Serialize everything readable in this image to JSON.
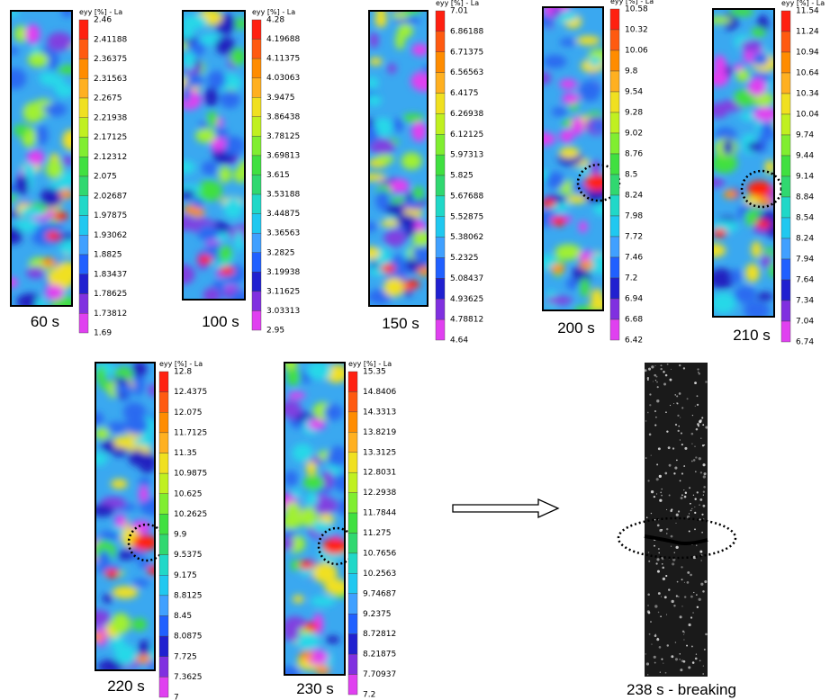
{
  "panels": [
    {
      "time": "60 s",
      "colorbar_title": "eyy [%] - La",
      "ticks": [
        "2.46",
        "2.41188",
        "2.36375",
        "2.31563",
        "2.2675",
        "2.21938",
        "2.17125",
        "2.12312",
        "2.075",
        "2.02687",
        "1.97875",
        "1.93062",
        "1.8825",
        "1.83437",
        "1.78625",
        "1.73812",
        "1.69"
      ]
    },
    {
      "time": "100 s",
      "colorbar_title": "eyy [%] - La",
      "ticks": [
        "4.28",
        "4.19688",
        "4.11375",
        "4.03063",
        "3.9475",
        "3.86438",
        "3.78125",
        "3.69813",
        "3.615",
        "3.53188",
        "3.44875",
        "3.36563",
        "3.2825",
        "3.19938",
        "3.11625",
        "3.03313",
        "2.95"
      ]
    },
    {
      "time": "150 s",
      "colorbar_title": "eyy [%] - La",
      "ticks": [
        "7.01",
        "6.86188",
        "6.71375",
        "6.56563",
        "6.4175",
        "6.26938",
        "6.12125",
        "5.97313",
        "5.825",
        "5.67688",
        "5.52875",
        "5.38062",
        "5.2325",
        "5.08437",
        "4.93625",
        "4.78812",
        "4.64"
      ]
    },
    {
      "time": "200 s",
      "colorbar_title": "eyy [%] - La",
      "ticks": [
        "10.58",
        "10.32",
        "10.06",
        "9.8",
        "9.54",
        "9.28",
        "9.02",
        "8.76",
        "8.5",
        "8.24",
        "7.98",
        "7.72",
        "7.46",
        "7.2",
        "6.94",
        "6.68",
        "6.42"
      ]
    },
    {
      "time": "210 s",
      "colorbar_title": "eyy [%] - La",
      "ticks": [
        "11.54",
        "11.24",
        "10.94",
        "10.64",
        "10.34",
        "10.04",
        "9.74",
        "9.44",
        "9.14",
        "8.84",
        "8.54",
        "8.24",
        "7.94",
        "7.64",
        "7.34",
        "7.04",
        "6.74"
      ]
    },
    {
      "time": "220 s",
      "colorbar_title": "eyy [%] - La",
      "ticks": [
        "12.8",
        "12.4375",
        "12.075",
        "11.7125",
        "11.35",
        "10.9875",
        "10.625",
        "10.2625",
        "9.9",
        "9.5375",
        "9.175",
        "8.8125",
        "8.45",
        "8.0875",
        "7.725",
        "7.3625",
        "7"
      ]
    },
    {
      "time": "230 s",
      "colorbar_title": "eyy [%] - La",
      "ticks": [
        "15.35",
        "14.8406",
        "14.3313",
        "13.8219",
        "13.3125",
        "12.8031",
        "12.2938",
        "11.7844",
        "11.275",
        "10.7656",
        "10.2563",
        "9.74687",
        "9.2375",
        "8.72812",
        "8.21875",
        "7.70937",
        "7.2"
      ]
    }
  ],
  "photo_label": "238 s - breaking"
}
